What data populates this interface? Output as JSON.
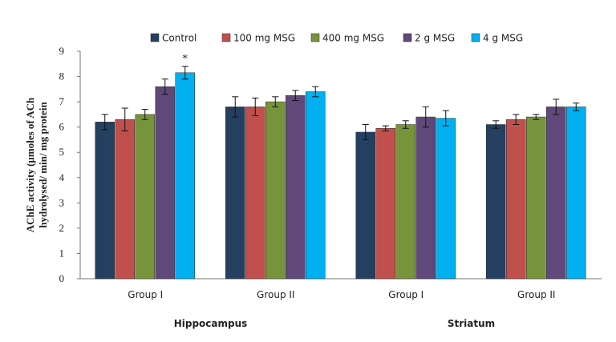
{
  "chart_data": {
    "type": "bar",
    "ylabel": [
      "AChE activity (µmoles of ACh",
      "hydrolysed/ min/ mg protein"
    ],
    "ylim": [
      0,
      9
    ],
    "yticks": [
      0,
      1,
      2,
      3,
      4,
      5,
      6,
      7,
      8,
      9
    ],
    "grid": false,
    "legend": "top",
    "categories": [
      "Group I",
      "Group II",
      "Group I",
      "Group II"
    ],
    "group_labels": [
      {
        "label": "Hippocampus",
        "span": [
          0,
          1
        ]
      },
      {
        "label": "Striatum",
        "span": [
          2,
          3
        ]
      }
    ],
    "series": [
      {
        "name": "Control",
        "color": "#243f60",
        "values": [
          6.2,
          6.8,
          5.8,
          6.1
        ],
        "errors": [
          0.3,
          0.4,
          0.3,
          0.15
        ]
      },
      {
        "name": "100 mg MSG",
        "color": "#c0504d",
        "values": [
          6.3,
          6.8,
          5.95,
          6.3
        ],
        "errors": [
          0.45,
          0.35,
          0.1,
          0.2
        ]
      },
      {
        "name": "400 mg MSG",
        "color": "#77933c",
        "values": [
          6.5,
          7.0,
          6.1,
          6.4
        ],
        "errors": [
          0.2,
          0.2,
          0.15,
          0.1
        ]
      },
      {
        "name": "2 g MSG",
        "color": "#60497a",
        "values": [
          7.6,
          7.25,
          6.4,
          6.8
        ],
        "errors": [
          0.3,
          0.2,
          0.4,
          0.3
        ]
      },
      {
        "name": "4 g MSG",
        "color": "#00b0f0",
        "values": [
          8.15,
          7.4,
          6.35,
          6.8
        ],
        "errors": [
          0.25,
          0.2,
          0.3,
          0.15
        ]
      }
    ],
    "annotations": [
      {
        "text": "*",
        "category_index": 0,
        "series_index": 4
      }
    ]
  }
}
